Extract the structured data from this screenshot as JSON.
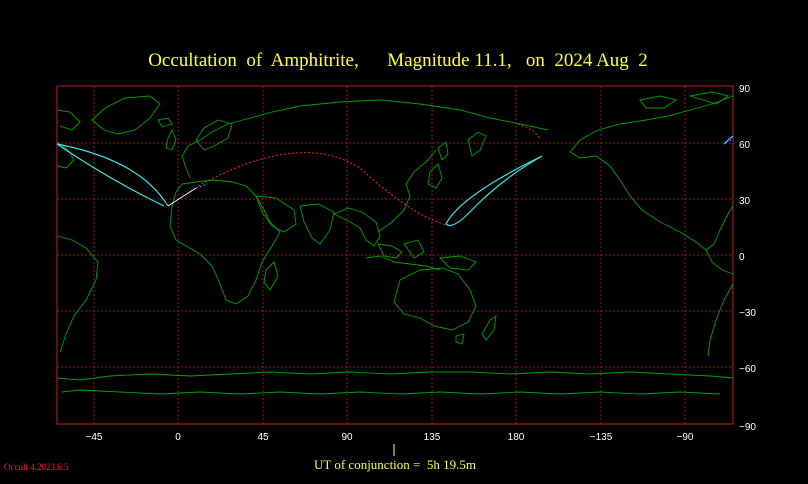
{
  "title": {
    "prefix": "Occultation  of",
    "object": "Amphitrite,",
    "magnitude": "Magnitude 11.1,",
    "date": "on  2024 Aug  2"
  },
  "lon_ticks": [
    "−45",
    "0",
    "45",
    "90",
    "135",
    "180",
    "−135",
    "−90"
  ],
  "lat_ticks": [
    "90",
    "60",
    "30",
    "0",
    "−30",
    "−60",
    "−90"
  ],
  "conjunction": {
    "label": "UT of conjunction =  5h 19.5m"
  },
  "version": "Occult 4.2023.6.5",
  "colors": {
    "background": "#000000",
    "grid": "#c02020",
    "coast": "#00a000",
    "path_limits": "#40e0e0",
    "centre_line": "#ff2020",
    "text": "#ffff40"
  }
}
